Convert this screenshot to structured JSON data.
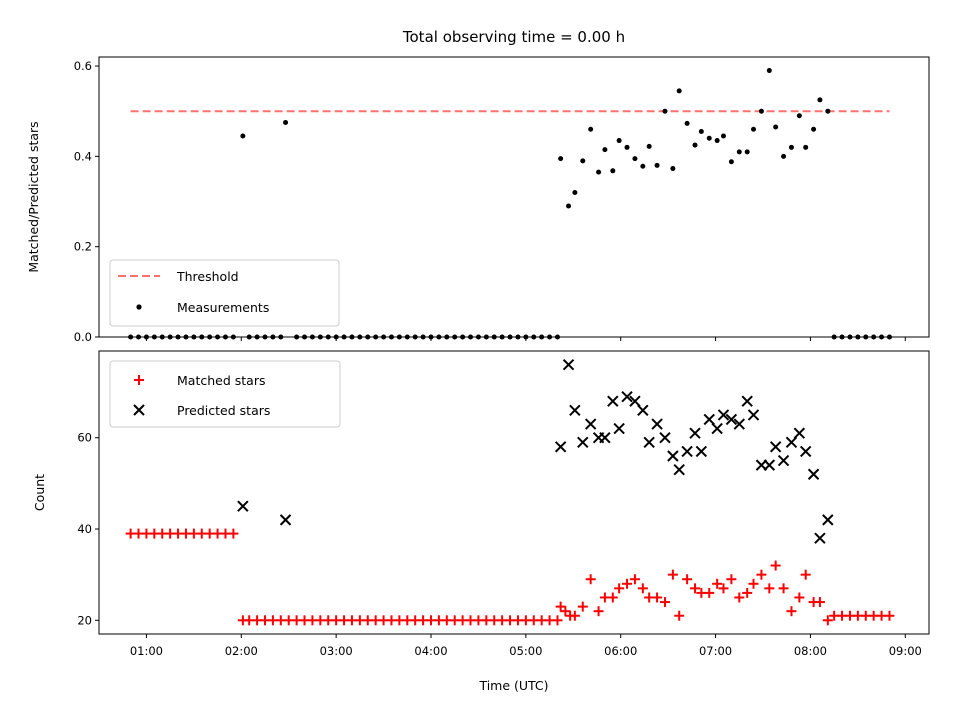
{
  "title": "Total observing time = 0.00 h",
  "colors": {
    "threshold": "#ff7070",
    "measurements": "#000000",
    "matched": "#ff0000",
    "predicted": "#000000"
  },
  "top": {
    "ylabel": "Matched/Predicted stars",
    "yticks": [
      "0.0",
      "0.2",
      "0.4",
      "0.6"
    ],
    "legend": {
      "threshold": "Threshold",
      "measurements": "Measurements"
    }
  },
  "bottom": {
    "ylabel": "Count",
    "yticks": [
      "20",
      "40",
      "60"
    ],
    "legend": {
      "matched": "Matched stars",
      "predicted": "Predicted stars"
    }
  },
  "xlabel": "Time (UTC)",
  "xticks": [
    "01:00",
    "02:00",
    "03:00",
    "04:00",
    "05:00",
    "06:00",
    "07:00",
    "08:00",
    "09:00"
  ],
  "chart_data": [
    {
      "type": "scatter",
      "title": "Total observing time = 0.00 h",
      "xlabel": "",
      "ylabel": "Matched/Predicted stars",
      "xlim": [
        "00:30",
        "09:15"
      ],
      "ylim": [
        0,
        0.62
      ],
      "threshold": 0.5,
      "legend_position": "lower-left",
      "series": [
        {
          "name": "Measurements",
          "points": [
            [
              "00:50",
              0
            ],
            [
              "00:55",
              0
            ],
            [
              "01:00",
              0
            ],
            [
              "01:05",
              0
            ],
            [
              "01:10",
              0
            ],
            [
              "01:15",
              0
            ],
            [
              "01:20",
              0
            ],
            [
              "01:25",
              0
            ],
            [
              "01:30",
              0
            ],
            [
              "01:35",
              0
            ],
            [
              "01:40",
              0
            ],
            [
              "01:45",
              0
            ],
            [
              "01:50",
              0
            ],
            [
              "01:55",
              0
            ],
            [
              "02:01",
              0.445
            ],
            [
              "02:05",
              0
            ],
            [
              "02:10",
              0
            ],
            [
              "02:15",
              0
            ],
            [
              "02:20",
              0
            ],
            [
              "02:25",
              0
            ],
            [
              "02:28",
              0.475
            ],
            [
              "02:35",
              0
            ],
            [
              "02:40",
              0
            ],
            [
              "02:45",
              0
            ],
            [
              "02:50",
              0
            ],
            [
              "02:55",
              0
            ],
            [
              "03:00",
              0
            ],
            [
              "03:05",
              0
            ],
            [
              "03:10",
              0
            ],
            [
              "03:15",
              0
            ],
            [
              "03:20",
              0
            ],
            [
              "03:25",
              0
            ],
            [
              "03:30",
              0
            ],
            [
              "03:35",
              0
            ],
            [
              "03:40",
              0
            ],
            [
              "03:45",
              0
            ],
            [
              "03:50",
              0
            ],
            [
              "03:55",
              0
            ],
            [
              "04:00",
              0
            ],
            [
              "04:05",
              0
            ],
            [
              "04:10",
              0
            ],
            [
              "04:15",
              0
            ],
            [
              "04:20",
              0
            ],
            [
              "04:25",
              0
            ],
            [
              "04:30",
              0
            ],
            [
              "04:35",
              0
            ],
            [
              "04:40",
              0
            ],
            [
              "04:45",
              0
            ],
            [
              "04:50",
              0
            ],
            [
              "04:55",
              0
            ],
            [
              "05:00",
              0
            ],
            [
              "05:05",
              0
            ],
            [
              "05:10",
              0
            ],
            [
              "05:15",
              0
            ],
            [
              "05:20",
              0
            ],
            [
              "05:22",
              0.395
            ],
            [
              "05:27",
              0.29
            ],
            [
              "05:31",
              0.32
            ],
            [
              "05:36",
              0.39
            ],
            [
              "05:41",
              0.46
            ],
            [
              "05:46",
              0.365
            ],
            [
              "05:50",
              0.415
            ],
            [
              "05:55",
              0.368
            ],
            [
              "05:59",
              0.435
            ],
            [
              "06:04",
              0.42
            ],
            [
              "06:09",
              0.395
            ],
            [
              "06:14",
              0.378
            ],
            [
              "06:18",
              0.422
            ],
            [
              "06:23",
              0.38
            ],
            [
              "06:28",
              0.5
            ],
            [
              "06:33",
              0.373
            ],
            [
              "06:37",
              0.545
            ],
            [
              "06:42",
              0.473
            ],
            [
              "06:47",
              0.425
            ],
            [
              "06:51",
              0.455
            ],
            [
              "06:56",
              0.44
            ],
            [
              "07:01",
              0.435
            ],
            [
              "07:05",
              0.445
            ],
            [
              "07:10",
              0.388
            ],
            [
              "07:15",
              0.41
            ],
            [
              "07:20",
              0.41
            ],
            [
              "07:24",
              0.46
            ],
            [
              "07:29",
              0.5
            ],
            [
              "07:34",
              0.59
            ],
            [
              "07:38",
              0.465
            ],
            [
              "07:43",
              0.4
            ],
            [
              "07:48",
              0.42
            ],
            [
              "07:53",
              0.49
            ],
            [
              "07:57",
              0.42
            ],
            [
              "08:02",
              0.46
            ],
            [
              "08:06",
              0.525
            ],
            [
              "08:11",
              0.5
            ],
            [
              "08:15",
              0
            ],
            [
              "08:20",
              0
            ],
            [
              "08:25",
              0
            ],
            [
              "08:30",
              0
            ],
            [
              "08:35",
              0
            ],
            [
              "08:40",
              0
            ],
            [
              "08:45",
              0
            ],
            [
              "08:50",
              0
            ]
          ]
        }
      ]
    },
    {
      "type": "scatter",
      "xlabel": "Time (UTC)",
      "ylabel": "Count",
      "xlim": [
        "00:30",
        "09:15"
      ],
      "ylim": [
        17,
        79
      ],
      "legend_position": "top-left",
      "series": [
        {
          "name": "Matched stars",
          "points": [
            [
              "00:50",
              39
            ],
            [
              "00:55",
              39
            ],
            [
              "01:00",
              39
            ],
            [
              "01:05",
              39
            ],
            [
              "01:10",
              39
            ],
            [
              "01:15",
              39
            ],
            [
              "01:20",
              39
            ],
            [
              "01:25",
              39
            ],
            [
              "01:30",
              39
            ],
            [
              "01:35",
              39
            ],
            [
              "01:40",
              39
            ],
            [
              "01:45",
              39
            ],
            [
              "01:50",
              39
            ],
            [
              "01:55",
              39
            ],
            [
              "02:01",
              20
            ],
            [
              "02:05",
              20
            ],
            [
              "02:10",
              20
            ],
            [
              "02:15",
              20
            ],
            [
              "02:20",
              20
            ],
            [
              "02:25",
              20
            ],
            [
              "02:30",
              20
            ],
            [
              "02:35",
              20
            ],
            [
              "02:40",
              20
            ],
            [
              "02:45",
              20
            ],
            [
              "02:50",
              20
            ],
            [
              "02:55",
              20
            ],
            [
              "03:00",
              20
            ],
            [
              "03:05",
              20
            ],
            [
              "03:10",
              20
            ],
            [
              "03:15",
              20
            ],
            [
              "03:20",
              20
            ],
            [
              "03:25",
              20
            ],
            [
              "03:30",
              20
            ],
            [
              "03:35",
              20
            ],
            [
              "03:40",
              20
            ],
            [
              "03:45",
              20
            ],
            [
              "03:50",
              20
            ],
            [
              "03:55",
              20
            ],
            [
              "04:00",
              20
            ],
            [
              "04:05",
              20
            ],
            [
              "04:10",
              20
            ],
            [
              "04:15",
              20
            ],
            [
              "04:20",
              20
            ],
            [
              "04:25",
              20
            ],
            [
              "04:30",
              20
            ],
            [
              "04:35",
              20
            ],
            [
              "04:40",
              20
            ],
            [
              "04:45",
              20
            ],
            [
              "04:50",
              20
            ],
            [
              "04:55",
              20
            ],
            [
              "05:00",
              20
            ],
            [
              "05:05",
              20
            ],
            [
              "05:10",
              20
            ],
            [
              "05:15",
              20
            ],
            [
              "05:20",
              20
            ],
            [
              "05:22",
              23
            ],
            [
              "05:25",
              22
            ],
            [
              "05:28",
              21
            ],
            [
              "05:31",
              21
            ],
            [
              "05:36",
              23
            ],
            [
              "05:41",
              29
            ],
            [
              "05:46",
              22
            ],
            [
              "05:50",
              25
            ],
            [
              "05:55",
              25
            ],
            [
              "05:59",
              27
            ],
            [
              "06:04",
              28
            ],
            [
              "06:09",
              29
            ],
            [
              "06:14",
              27
            ],
            [
              "06:18",
              25
            ],
            [
              "06:23",
              25
            ],
            [
              "06:28",
              24
            ],
            [
              "06:33",
              30
            ],
            [
              "06:37",
              21
            ],
            [
              "06:42",
              29
            ],
            [
              "06:47",
              27
            ],
            [
              "06:51",
              26
            ],
            [
              "06:56",
              26
            ],
            [
              "07:01",
              28
            ],
            [
              "07:05",
              27
            ],
            [
              "07:10",
              29
            ],
            [
              "07:15",
              25
            ],
            [
              "07:20",
              26
            ],
            [
              "07:24",
              28
            ],
            [
              "07:29",
              30
            ],
            [
              "07:34",
              27
            ],
            [
              "07:38",
              32
            ],
            [
              "07:43",
              27
            ],
            [
              "07:48",
              22
            ],
            [
              "07:53",
              25
            ],
            [
              "07:57",
              30
            ],
            [
              "08:02",
              24
            ],
            [
              "08:06",
              24
            ],
            [
              "08:11",
              20
            ],
            [
              "08:15",
              21
            ],
            [
              "08:20",
              21
            ],
            [
              "08:25",
              21
            ],
            [
              "08:30",
              21
            ],
            [
              "08:35",
              21
            ],
            [
              "08:40",
              21
            ],
            [
              "08:45",
              21
            ],
            [
              "08:50",
              21
            ]
          ]
        },
        {
          "name": "Predicted stars",
          "points": [
            [
              "02:01",
              45
            ],
            [
              "02:28",
              42
            ],
            [
              "05:22",
              58
            ],
            [
              "05:27",
              76
            ],
            [
              "05:31",
              66
            ],
            [
              "05:36",
              59
            ],
            [
              "05:41",
              63
            ],
            [
              "05:46",
              60
            ],
            [
              "05:50",
              60
            ],
            [
              "05:55",
              68
            ],
            [
              "05:59",
              62
            ],
            [
              "06:04",
              69
            ],
            [
              "06:09",
              68
            ],
            [
              "06:14",
              66
            ],
            [
              "06:18",
              59
            ],
            [
              "06:23",
              63
            ],
            [
              "06:28",
              60
            ],
            [
              "06:33",
              56
            ],
            [
              "06:37",
              53
            ],
            [
              "06:42",
              57
            ],
            [
              "06:47",
              61
            ],
            [
              "06:51",
              57
            ],
            [
              "06:56",
              64
            ],
            [
              "07:01",
              62
            ],
            [
              "07:05",
              65
            ],
            [
              "07:10",
              64
            ],
            [
              "07:15",
              63
            ],
            [
              "07:20",
              68
            ],
            [
              "07:24",
              65
            ],
            [
              "07:29",
              54
            ],
            [
              "07:34",
              54
            ],
            [
              "07:38",
              58
            ],
            [
              "07:43",
              55
            ],
            [
              "07:48",
              59
            ],
            [
              "07:53",
              61
            ],
            [
              "07:57",
              57
            ],
            [
              "08:02",
              52
            ],
            [
              "08:06",
              38
            ],
            [
              "08:11",
              42
            ]
          ]
        }
      ]
    }
  ]
}
